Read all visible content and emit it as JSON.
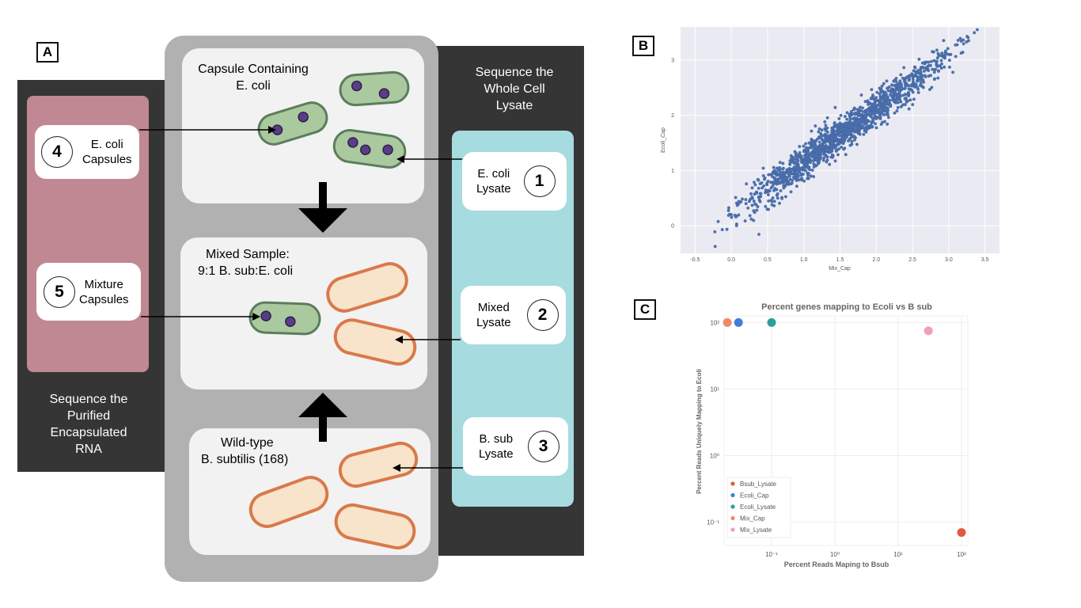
{
  "panels": {
    "a": "A",
    "b": "B",
    "c": "C"
  },
  "left_column": {
    "label_lines": [
      "Sequence the",
      "Purified",
      "Encapsulated",
      "RNA"
    ]
  },
  "right_column": {
    "label_lines": [
      "Sequence the",
      "Whole Cell",
      "Lysate"
    ]
  },
  "center": {
    "capsule_title_lines": [
      "Capsule Containing",
      "E. coli"
    ],
    "mixed_title_lines": [
      "Mixed Sample:",
      "9:1 B. sub:E. coli"
    ],
    "wild_title_lines": [
      "Wild-type",
      "B. subtilis (168)"
    ]
  },
  "samples": [
    {
      "num": "4",
      "lines": [
        "E. coli",
        "Capsules"
      ]
    },
    {
      "num": "5",
      "lines": [
        "Mixture",
        "Capsules"
      ]
    },
    {
      "num": "1",
      "lines": [
        "E. coli",
        "Lysate"
      ]
    },
    {
      "num": "2",
      "lines": [
        "Mixed",
        "Lysate"
      ]
    },
    {
      "num": "3",
      "lines": [
        "B. sub",
        "Lysate"
      ]
    }
  ],
  "colors": {
    "dark": "#353535",
    "rose": "#c08893",
    "cyan": "#a6dbe0",
    "ecoli_fill": "#aac99e",
    "ecoli_stroke": "#5b7d5e",
    "bsub_fill": "#f7e4cb",
    "bsub_stroke": "#d9794a",
    "dot": "#5a3d86"
  },
  "chart_data": [
    {
      "type": "scatter",
      "xlabel": "Mix_Cap",
      "ylabel": "Ecoli_Cap",
      "xlim": [
        -0.7,
        3.7
      ],
      "ylim": [
        -0.5,
        3.6
      ],
      "x_ticks": [
        "-0.5",
        "0.0",
        "0.5",
        "1.0",
        "1.5",
        "2.0",
        "2.5",
        "3.0",
        "3.5"
      ],
      "y_ticks": [
        "0",
        "1",
        "2",
        "3"
      ],
      "grid": true,
      "trend": {
        "slope": 0.97,
        "intercept": 0.18,
        "spread": 0.15,
        "x_range": [
          -0.5,
          3.6
        ],
        "n_points": 1400
      }
    },
    {
      "type": "scatter",
      "title": "Percent genes mapping to Ecoli vs B sub",
      "xlabel": "Percent Reads Maping to Bsub",
      "ylabel": "Percent Reads Uniquely Mapping to Ecoli",
      "x_scale": "log",
      "y_scale": "log",
      "x_ticks": [
        "10⁻¹",
        "10⁰",
        "10¹",
        "10²"
      ],
      "y_ticks": [
        "10²",
        "10¹",
        "10⁰",
        "10⁻¹"
      ],
      "legend_position": "bottom-left",
      "series": [
        {
          "name": "Bsub_Lysate",
          "color": "#e05a3f",
          "x": [
            100
          ],
          "y": [
            0.07
          ]
        },
        {
          "name": "Ecoli_Cap",
          "color": "#3e7fdd",
          "x": [
            0.03
          ],
          "y": [
            100
          ]
        },
        {
          "name": "Ecoli_Lysate",
          "color": "#2f9e9a",
          "x": [
            0.1
          ],
          "y": [
            100
          ]
        },
        {
          "name": "Mix_Cap",
          "color": "#ef8a64",
          "x": [
            0.02
          ],
          "y": [
            100
          ]
        },
        {
          "name": "Mix_Lysate",
          "color": "#f0a0b2",
          "x": [
            30
          ],
          "y": [
            75
          ]
        }
      ]
    }
  ]
}
